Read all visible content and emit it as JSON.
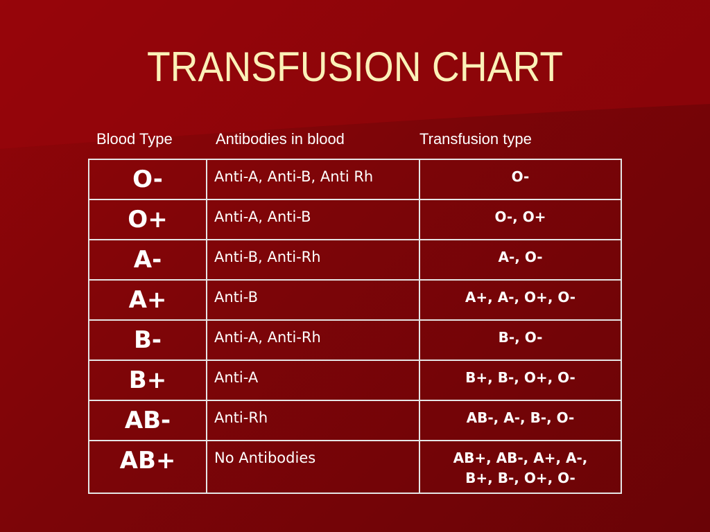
{
  "slide": {
    "title": "TRANSFUSION CHART",
    "headers": {
      "blood_type": "Blood Type",
      "antibodies": "Antibodies in blood",
      "transfusion": "Transfusion type"
    },
    "colors": {
      "background": "#7a0404",
      "title": "#fbf1b8",
      "text": "#ffffff",
      "grid": "#e6e6e6"
    },
    "rows": [
      {
        "type": "O-",
        "antibodies": "Anti-A, Anti-B, Anti Rh",
        "transfusion": "O-"
      },
      {
        "type": "O+",
        "antibodies": "Anti-A, Anti-B",
        "transfusion": "O-, O+"
      },
      {
        "type": "A-",
        "antibodies": "Anti-B, Anti-Rh",
        "transfusion": "A-, O-"
      },
      {
        "type": "A+",
        "antibodies": "Anti-B",
        "transfusion": "A+, A-, O+, O-"
      },
      {
        "type": "B-",
        "antibodies": "Anti-A, Anti-Rh",
        "transfusion": "B-, O-"
      },
      {
        "type": "B+",
        "antibodies": "Anti-A",
        "transfusion": "B+, B-, O+, O-"
      },
      {
        "type": "AB-",
        "antibodies": "Anti-Rh",
        "transfusion": "AB-, A-, B-, O-"
      },
      {
        "type": "AB+",
        "antibodies": "No Antibodies",
        "transfusion": "AB+, AB-, A+, A-,",
        "transfusion_line2": "B+, B-, O+, O-"
      }
    ]
  }
}
